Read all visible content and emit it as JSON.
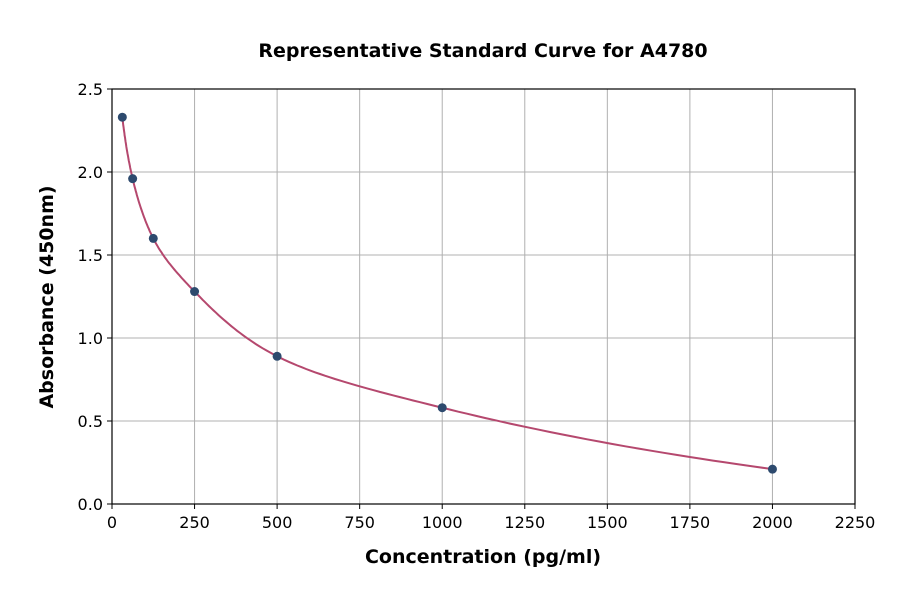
{
  "chart_data": {
    "type": "scatter",
    "title": "Representative Standard Curve for A4780",
    "xlabel": "Concentration (pg/ml)",
    "ylabel": "Absorbance (450nm)",
    "xlim": [
      0,
      2250
    ],
    "ylim": [
      0,
      2.5
    ],
    "xticks": [
      0,
      250,
      500,
      750,
      1000,
      1250,
      1500,
      1750,
      2000,
      2250
    ],
    "yticks": [
      "0.0",
      "0.5",
      "1.0",
      "1.5",
      "2.0",
      "2.5"
    ],
    "grid": true,
    "x": [
      31.25,
      62.5,
      125,
      250,
      500,
      1000,
      2000
    ],
    "y": [
      2.33,
      1.96,
      1.6,
      1.28,
      0.89,
      0.58,
      0.21
    ],
    "point_color": "#2d4a6e",
    "curve_color": "#b5486e",
    "fit_curve": true
  }
}
